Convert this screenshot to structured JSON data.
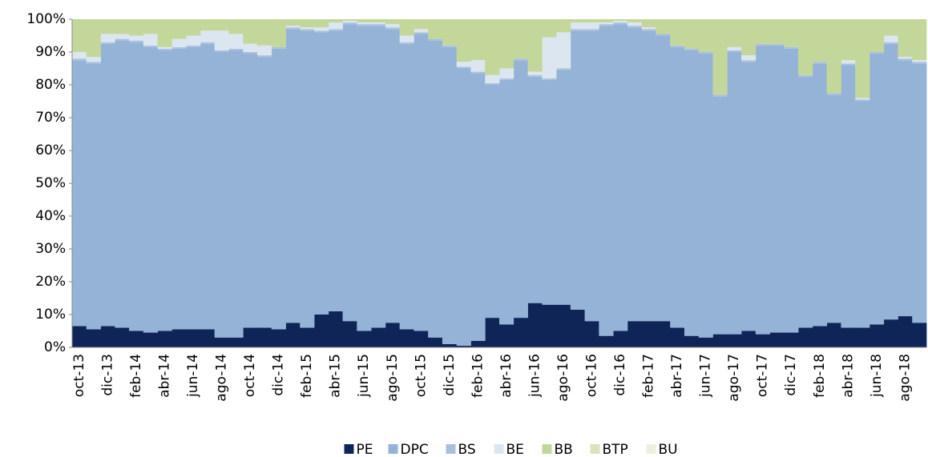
{
  "chart_data": {
    "type": "stacked_bar",
    "categories": [
      "oct-13",
      null,
      "dic-13",
      null,
      "feb-14",
      null,
      "abr-14",
      null,
      "jun-14",
      null,
      "ago-14",
      null,
      "oct-14",
      null,
      "dic-14",
      null,
      "feb-15",
      null,
      "abr-15",
      null,
      "jun-15",
      null,
      "ago-15",
      null,
      "oct-15",
      null,
      "dic-15",
      null,
      "feb-16",
      null,
      "abr-16",
      null,
      "jun-16",
      null,
      "ago-16",
      null,
      "oct-16",
      null,
      "dic-16",
      null,
      "feb-17",
      null,
      "abr-17",
      null,
      "jun-17",
      null,
      "ago-17",
      null,
      "oct-17",
      null,
      "dic-17",
      null,
      "feb-18",
      null,
      "abr-18",
      null,
      "jun-18",
      null,
      "ago-18",
      null
    ],
    "series": [
      {
        "name": "PE",
        "color": "#0f2557",
        "values": [
          6.5,
          5.5,
          6.5,
          6,
          5,
          4.5,
          5,
          5.5,
          5.5,
          5.5,
          3,
          3,
          6,
          6,
          5.5,
          7.5,
          6,
          10,
          11,
          8,
          5,
          6,
          7.5,
          5.5,
          5,
          3,
          1,
          0.5,
          2,
          9,
          7,
          9,
          13.5,
          13,
          13,
          11.5,
          8,
          3.5,
          5,
          8,
          8,
          8,
          6,
          3.5,
          3,
          4,
          4,
          5,
          4,
          4.5,
          4.5,
          6,
          6.5,
          7.5,
          6,
          6,
          7,
          8.5,
          9.5,
          7.5
        ]
      },
      {
        "name": "DPC",
        "color": "#95b3d7",
        "values": [
          81,
          81,
          86,
          87.5,
          88,
          87,
          85.5,
          85.5,
          86,
          87,
          87,
          87.5,
          83.5,
          82.5,
          85.5,
          89.5,
          90.5,
          86,
          85.5,
          90.5,
          93,
          92,
          89.5,
          87,
          90.5,
          90.5,
          90.5,
          84.5,
          81.5,
          71,
          74.5,
          78.5,
          69,
          68.5,
          71.5,
          85,
          88.5,
          94.5,
          93.5,
          89.5,
          88.5,
          87,
          85.5,
          87,
          86.5,
          72.5,
          86,
          82,
          88,
          87.5,
          86.5,
          76.5,
          80,
          69.5,
          80,
          69,
          82.5,
          84,
          78,
          79
        ]
      },
      {
        "name": "BS",
        "color": "#a9c0dd",
        "values": [
          0.5,
          0.5,
          0.5,
          0.5,
          0.5,
          0.5,
          0.5,
          0.5,
          0.5,
          0.5,
          0.5,
          0.5,
          0.5,
          0.5,
          0.5,
          0.5,
          0.5,
          0.5,
          0.5,
          0.5,
          0.5,
          0.5,
          0.5,
          0.5,
          0.5,
          0.5,
          0.5,
          0.5,
          0.5,
          0.5,
          0.5,
          0.5,
          0.5,
          0.5,
          0.5,
          0.5,
          0.5,
          0.5,
          0.5,
          0.5,
          0.5,
          0.5,
          0.5,
          0.5,
          0.5,
          0.5,
          0.5,
          0.5,
          0.5,
          0.5,
          0.5,
          0.5,
          0.5,
          0.5,
          0.5,
          0.5,
          0.5,
          0.5,
          0.5,
          0.5
        ]
      },
      {
        "name": "BE",
        "color": "#dce6f1",
        "values": [
          2,
          1.5,
          2.5,
          1.5,
          1.5,
          3.5,
          0.5,
          2.5,
          3,
          3.5,
          6,
          4.5,
          2.5,
          3,
          0,
          0.5,
          0.5,
          1,
          2,
          0.5,
          0.5,
          0.5,
          1,
          2,
          1,
          0,
          0,
          1.5,
          3.5,
          2.5,
          3,
          0,
          1,
          12.5,
          11,
          2,
          2,
          0.5,
          0.5,
          1,
          0.5,
          0,
          0,
          0,
          0,
          0,
          1,
          1.5,
          0,
          0,
          0,
          0,
          0,
          0,
          1,
          0.5,
          0,
          2,
          0.5,
          0.5
        ]
      },
      {
        "name": "BB",
        "color": "#c4d79b",
        "values": [
          10,
          11.5,
          4.5,
          4.5,
          5,
          4.5,
          8.5,
          6,
          5,
          3.5,
          3.5,
          4.5,
          7.5,
          8,
          8.5,
          2,
          2.5,
          2.5,
          1,
          0.5,
          1,
          1,
          1.5,
          5,
          3,
          6,
          8,
          13,
          12.5,
          17,
          15,
          12,
          16,
          5.5,
          4,
          1,
          1,
          1,
          0.5,
          1,
          2.5,
          4.5,
          8,
          9,
          10,
          23,
          8.5,
          11,
          7.5,
          7.5,
          8.5,
          17,
          13,
          22.5,
          12.5,
          24,
          10,
          5,
          11.5,
          12.5
        ]
      },
      {
        "name": "BTP",
        "color": "#d8e4bc",
        "values": [
          0,
          0,
          0,
          0,
          0,
          0,
          0,
          0,
          0,
          0,
          0,
          0,
          0,
          0,
          0,
          0,
          0,
          0,
          0,
          0,
          0,
          0,
          0,
          0,
          0,
          0,
          0,
          0,
          0,
          0,
          0,
          0,
          0,
          0,
          0,
          0,
          0,
          0,
          0,
          0,
          0,
          0,
          0,
          0,
          0,
          0,
          0,
          0,
          0,
          0,
          0,
          0,
          0,
          0,
          0,
          0,
          0,
          0,
          0,
          0
        ]
      },
      {
        "name": "BU",
        "color": "#ebf1de",
        "values": [
          0,
          0,
          0,
          0,
          0,
          0,
          0,
          0,
          0,
          0,
          0,
          0,
          0,
          0,
          0,
          0,
          0,
          0,
          0,
          0,
          0,
          0,
          0,
          0,
          0,
          0,
          0,
          0,
          0,
          0,
          0,
          0,
          0,
          0,
          0,
          0,
          0,
          0,
          0,
          0,
          0,
          0,
          0,
          0,
          0,
          0,
          0,
          0,
          0,
          0,
          0,
          0,
          0,
          0,
          0,
          0,
          0,
          0,
          0,
          0
        ]
      }
    ],
    "ylim": [
      0,
      100
    ],
    "yticks": [
      {
        "value": 0,
        "label": "0%"
      },
      {
        "value": 10,
        "label": "10%"
      },
      {
        "value": 20,
        "label": "20%"
      },
      {
        "value": 30,
        "label": "30%"
      },
      {
        "value": 40,
        "label": "40%"
      },
      {
        "value": 50,
        "label": "50%"
      },
      {
        "value": 60,
        "label": "60%"
      },
      {
        "value": 70,
        "label": "70%"
      },
      {
        "value": 80,
        "label": "80%"
      },
      {
        "value": 90,
        "label": "90%"
      },
      {
        "value": 100,
        "label": "100%"
      }
    ],
    "legend": "bottom"
  }
}
